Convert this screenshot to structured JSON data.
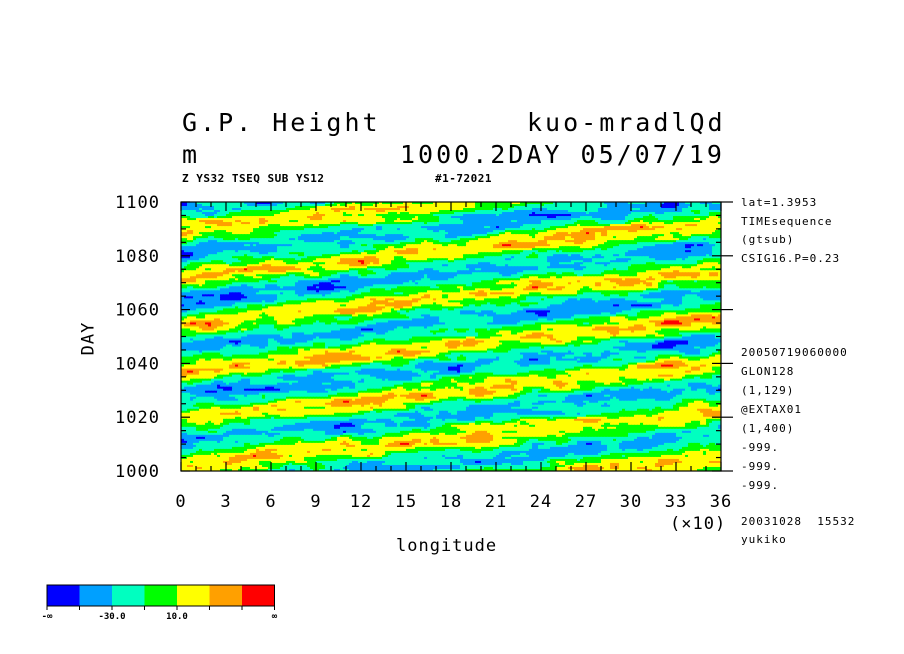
{
  "header": {
    "title_left": "G.P. Height",
    "title_right": "kuo-mradlQd",
    "unit": "m",
    "level_time": "1000.2DAY 05/07/19",
    "sub_left": "Z YS32 TSEQ SUB YS12",
    "sub_right": "#1-72021"
  },
  "side_info": {
    "lines_top": [
      "lat=1.3953",
      "TIMEsequence",
      "(gtsub)",
      "CSIG16.P=0.23"
    ],
    "lines_mid": [
      "20050719060000",
      "GLON128",
      "(1,129)",
      "@EXTAX01",
      "(1,400)",
      "-999.",
      "-999.",
      "-999."
    ],
    "lines_bottom": [
      "20031028  15532",
      "yukiko"
    ]
  },
  "colorbar": {
    "colors": [
      "#0000ff",
      "#00a0ff",
      "#00ffc0",
      "#00ff00",
      "#ffff00",
      "#ffa000",
      "#ff0000"
    ],
    "labels": [
      "-∞",
      "-30.0",
      "10.0",
      "∞"
    ]
  },
  "chart_data": {
    "type": "heatmap",
    "xlabel": "longitude",
    "ylabel": "DAY",
    "x_multiplier": "(×10)",
    "xlim": [
      0,
      36
    ],
    "ylim": [
      1000,
      1100
    ],
    "x_ticks": [
      "0",
      "3",
      "6",
      "9",
      "12",
      "15",
      "18",
      "21",
      "24",
      "27",
      "30",
      "33",
      "36"
    ],
    "y_ticks": [
      "1000",
      "1020",
      "1040",
      "1060",
      "1080",
      "1100"
    ],
    "levels": [
      "-∞",
      "-30.0",
      "10.0",
      "∞"
    ],
    "field": "eastward-propagating banded height anomaly pattern, bands tilted upward to the right",
    "band_phase_slope_days_per_lon": 0.056,
    "band_period_days": 17.5
  }
}
